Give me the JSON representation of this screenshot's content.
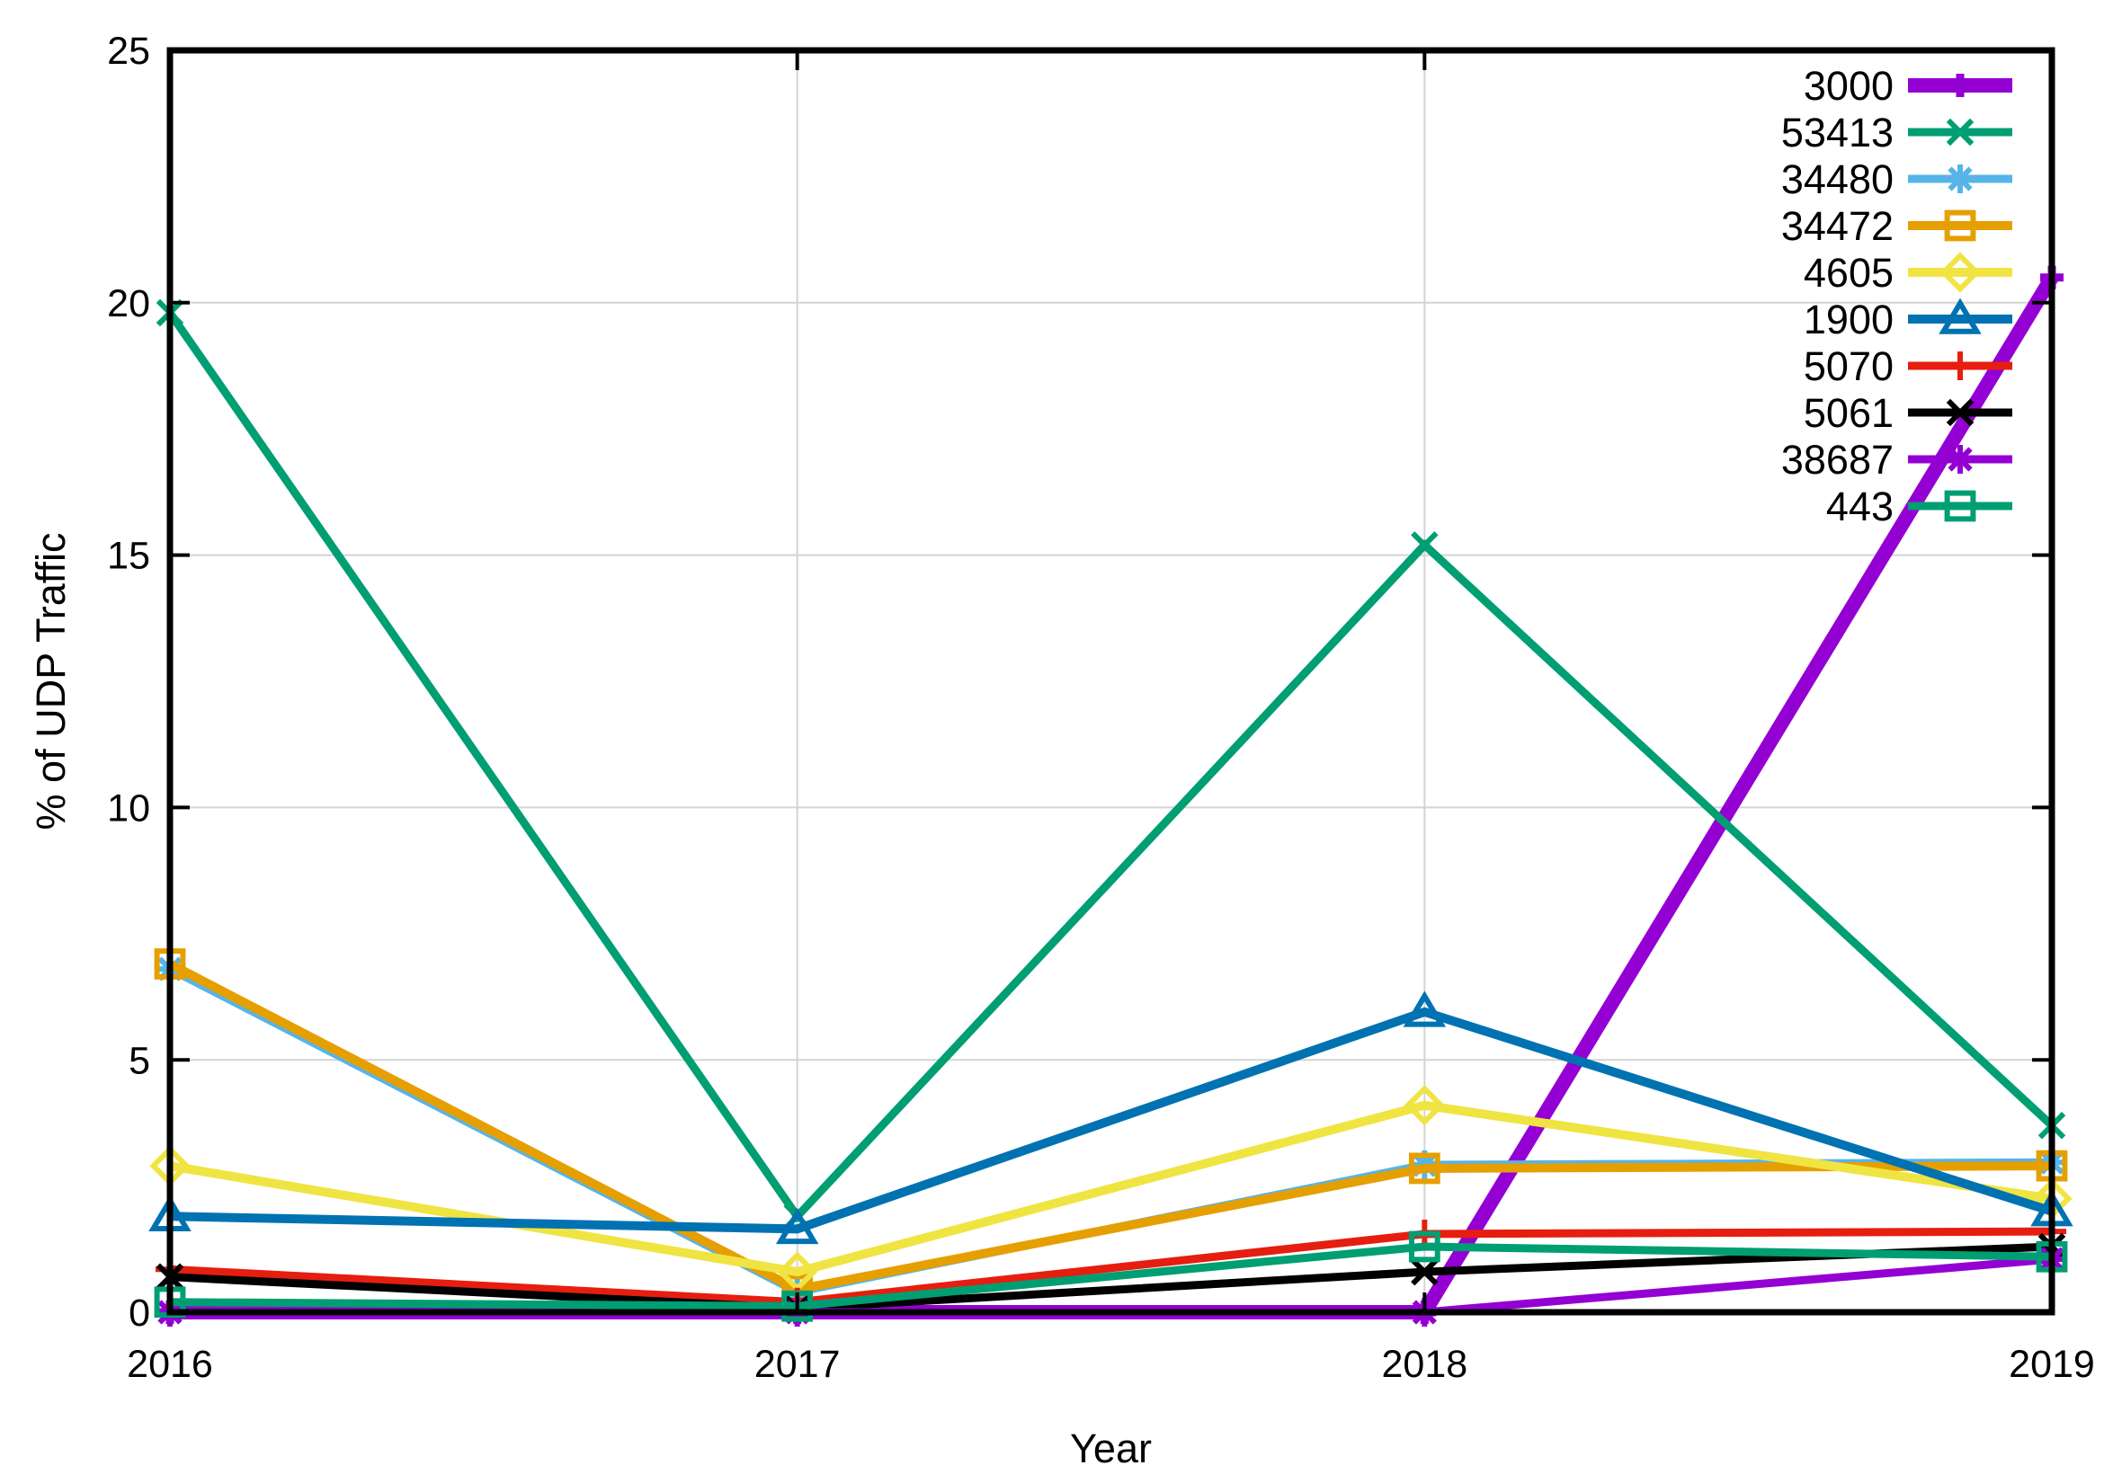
{
  "figure": {
    "background": "#ffffff",
    "text_color": "#000000",
    "grid_color": "#d4d4d4"
  },
  "chart_data": {
    "type": "line",
    "title": "",
    "xlabel": "Year",
    "ylabel": "% of UDP Traffic",
    "x": [
      2016,
      2017,
      2018,
      2019
    ],
    "xticks": [
      "2016",
      "2017",
      "2018",
      "2019"
    ],
    "yticks": [
      0,
      5,
      10,
      15,
      20,
      25
    ],
    "ylim": [
      0,
      25
    ],
    "grid": true,
    "legend_position": "top-right-inside",
    "series": [
      {
        "name": "3000",
        "color": "#9400D3",
        "marker": "plus",
        "line_width": 16,
        "values": [
          0.0,
          0.0,
          0.0,
          20.5
        ]
      },
      {
        "name": "53413",
        "color": "#009E73",
        "marker": "x",
        "line_width": 9,
        "values": [
          19.8,
          1.9,
          15.2,
          3.7
        ]
      },
      {
        "name": "34480",
        "color": "#56B4E9",
        "marker": "asterisk",
        "line_width": 9,
        "values": [
          6.8,
          0.4,
          2.92,
          2.97
        ]
      },
      {
        "name": "34472",
        "color": "#E69F00",
        "marker": "square",
        "line_width": 10,
        "values": [
          6.9,
          0.45,
          2.85,
          2.9
        ]
      },
      {
        "name": "4605",
        "color": "#F0E442",
        "marker": "diamond",
        "line_width": 10,
        "values": [
          2.9,
          0.8,
          4.1,
          2.25
        ]
      },
      {
        "name": "1900",
        "color": "#0072B2",
        "marker": "triangle",
        "line_width": 10,
        "values": [
          1.9,
          1.65,
          5.95,
          2.0
        ]
      },
      {
        "name": "5070",
        "color": "#E51E10",
        "marker": "plus",
        "line_width": 9,
        "values": [
          0.85,
          0.2,
          1.55,
          1.6
        ]
      },
      {
        "name": "5061",
        "color": "#000000",
        "marker": "x",
        "line_width": 9,
        "values": [
          0.7,
          0.08,
          0.8,
          1.3
        ]
      },
      {
        "name": "38687",
        "color": "#9400D3",
        "marker": "asterisk",
        "line_width": 9,
        "values": [
          0.0,
          0.0,
          0.0,
          1.05
        ]
      },
      {
        "name": "443",
        "color": "#009E73",
        "marker": "square",
        "line_width": 9,
        "values": [
          0.2,
          0.12,
          1.3,
          1.1
        ]
      }
    ]
  }
}
